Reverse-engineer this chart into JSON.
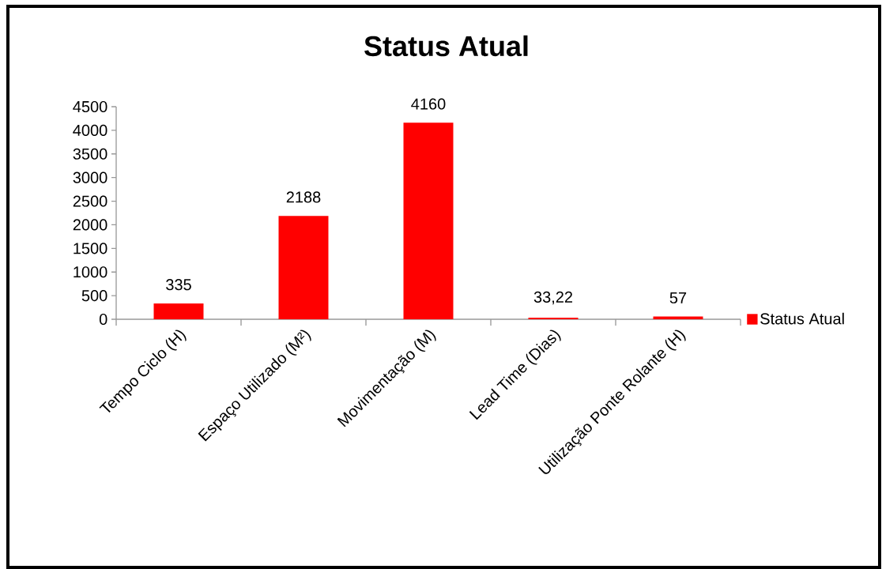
{
  "chart_data": {
    "type": "bar",
    "title": "Status Atual",
    "categories": [
      "Tempo Ciclo (H)",
      "Espaço Utilizado (M²)",
      "Movimentação (M)",
      "Lead Time (Dias)",
      "Utilização Ponte Rolante (H)"
    ],
    "series": [
      {
        "name": "Status Atual",
        "color": "#ff0000",
        "values": [
          335,
          2188,
          4160,
          33.22,
          57
        ],
        "value_labels": [
          "335",
          "2188",
          "4160",
          "33,22",
          "57"
        ]
      }
    ],
    "ylim": [
      0,
      4500
    ],
    "yticks": [
      0,
      500,
      1000,
      1500,
      2000,
      2500,
      3000,
      3500,
      4000,
      4500
    ],
    "grid": false,
    "legend": "right"
  }
}
